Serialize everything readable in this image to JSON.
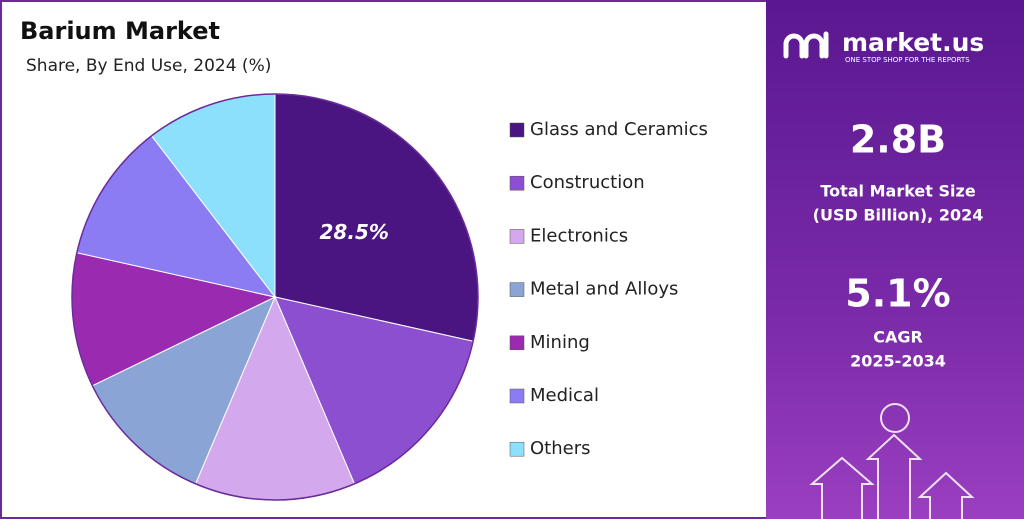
{
  "chart_data": {
    "type": "pie",
    "title": "Barium Market",
    "subtitle": "Share, By End Use, 2024 (%)",
    "categories": [
      "Glass and Ceramics",
      "Construction",
      "Electronics",
      "Metal and Alloys",
      "Mining",
      "Medical",
      "Others"
    ],
    "values": [
      28.5,
      15.1,
      12.8,
      11.4,
      10.7,
      11.1,
      10.4
    ],
    "value_labels": [
      "28.5%",
      null,
      null,
      null,
      null,
      null,
      null
    ],
    "colors": [
      "#4a1580",
      "#8b4fd0",
      "#d4a8ec",
      "#8aa4d6",
      "#9a2bb0",
      "#8b7cf4",
      "#8de0fb"
    ],
    "legend": "right"
  },
  "sidebar": {
    "brand": "market.us",
    "tagline": "ONE STOP SHOP FOR THE REPORTS",
    "market_size": "2.8B",
    "market_size_label": [
      "Total Market Size",
      "(USD Billion), 2024"
    ],
    "cagr": "5.1%",
    "cagr_label": [
      "CAGR",
      "2025-2034"
    ]
  }
}
